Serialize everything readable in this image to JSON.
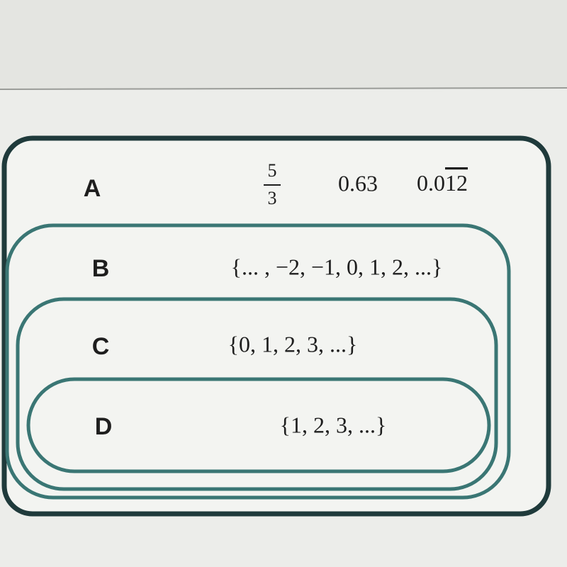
{
  "sets": [
    {
      "label": "A",
      "fraction": {
        "numerator": "5",
        "denominator": "3"
      },
      "elements": [
        "0.63"
      ],
      "repeating_decimal": {
        "text": "0.0",
        "repeating": "12"
      }
    },
    {
      "label": "B",
      "elements": [
        "{... , −2, −1, 0, 1, 2, ...}"
      ]
    },
    {
      "label": "C",
      "elements": [
        "{0, 1, 2, 3, ...}"
      ]
    },
    {
      "label": "D",
      "elements": [
        "{1, 2, 3, ...}"
      ]
    }
  ]
}
